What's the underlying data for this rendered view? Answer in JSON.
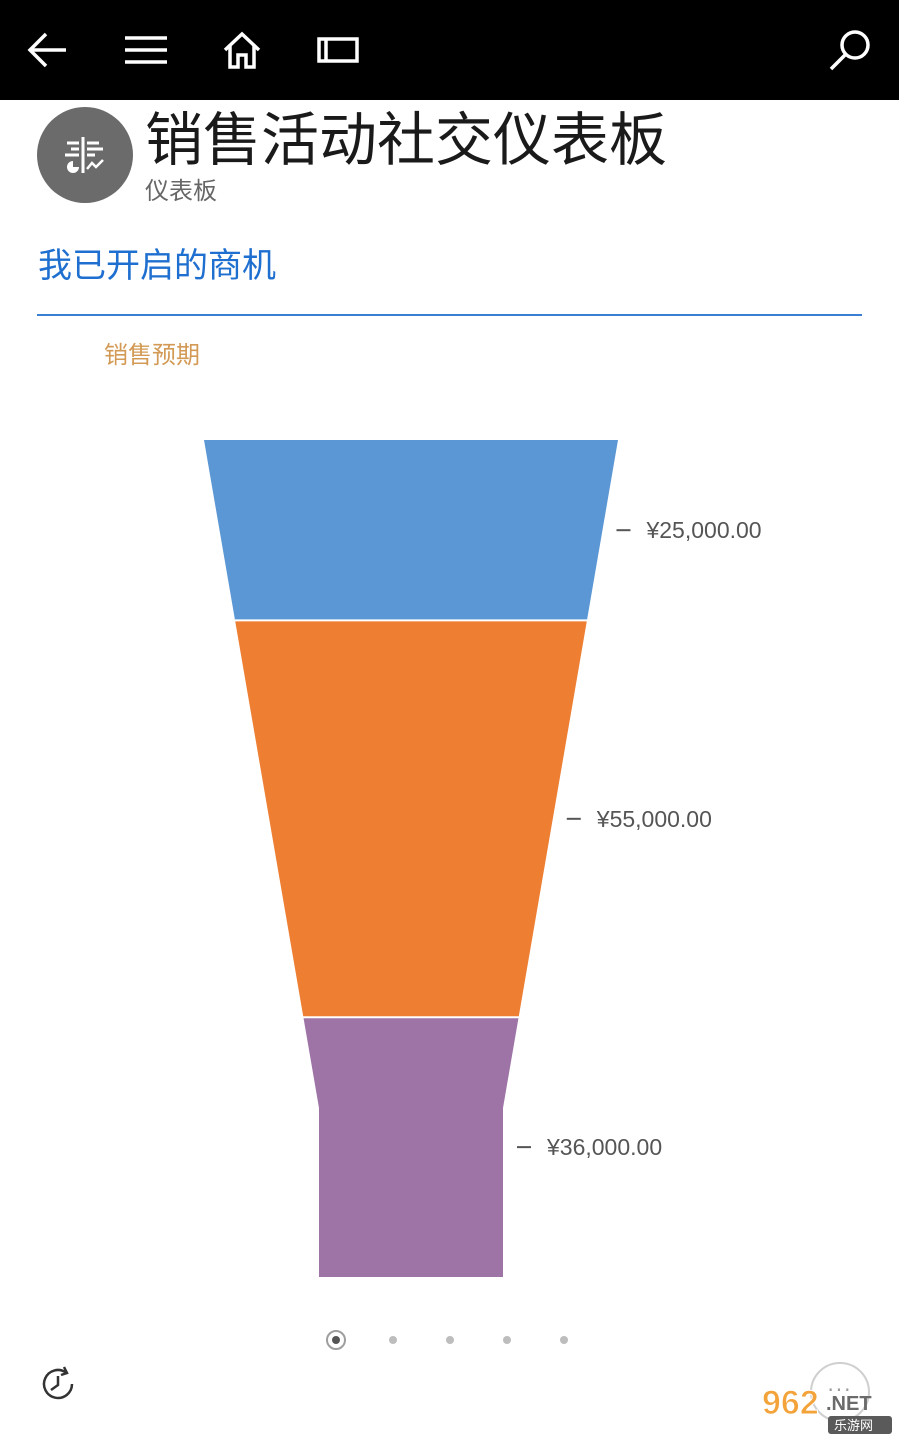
{
  "topbar": {
    "back_icon": "back-arrow-icon",
    "menu_icon": "hamburger-menu-icon",
    "home_icon": "home-icon",
    "view_icon": "view-toggle-icon",
    "search_icon": "search-icon"
  },
  "header": {
    "title": "销售活动社交仪表板",
    "subtitle": "仪表板",
    "avatar_icon": "dashboard-icon"
  },
  "section": {
    "title": "我已开启的商机"
  },
  "chart_data": {
    "type": "funnel",
    "title": "销售预期",
    "stages": [
      {
        "value": 25000,
        "label": "¥25,000.00",
        "color": "#5b97d4"
      },
      {
        "value": 55000,
        "label": "¥55,000.00",
        "color": "#ed7e32"
      },
      {
        "value": 36000,
        "label": "¥36,000.00",
        "color": "#9e74a7"
      }
    ]
  },
  "pager": {
    "count": 5,
    "active_index": 0
  },
  "footer": {
    "history_icon": "history-clock-icon",
    "more_label": "...",
    "watermark_main": "962.NET",
    "watermark_sub": "乐游网"
  },
  "colors": {
    "accent": "#1e6fcf",
    "chart_title": "#d39a55",
    "topbar": "#000000"
  }
}
